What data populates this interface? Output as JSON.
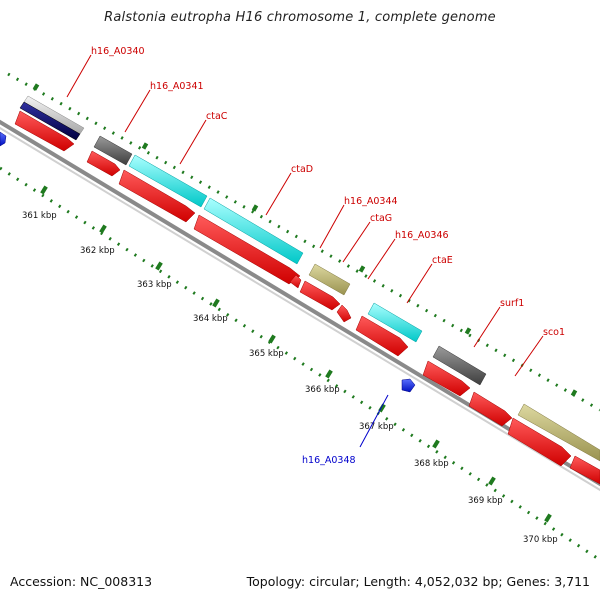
{
  "title": "Ralstonia eutropha H16 chromosome 1, complete genome",
  "footer": {
    "accession": "Accession: NC_008313",
    "topology": "Topology: circular; Length: 4,052,032 bp; Genes: 3,711"
  },
  "colors": {
    "backbone": "#8a8a8a",
    "tick": "#1f7a1f",
    "gene_arrow": "#ff0000",
    "label_red": "#cc0000",
    "label_blue": "#0000cc",
    "feature_cyan": "#19e3e3",
    "feature_gray": "#606060",
    "feature_khaki": "#b8b070",
    "feature_navy": "#101070",
    "feature_blue": "#1a33ff"
  },
  "ticks": [
    "361 kbp",
    "362 kbp",
    "363 kbp",
    "364 kbp",
    "365 kbp",
    "366 kbp",
    "367 kbp",
    "368 kbp",
    "369 kbp",
    "370 kbp"
  ],
  "genes": [
    {
      "name": "h16_A0340",
      "color": "label_red"
    },
    {
      "name": "h16_A0341",
      "color": "label_red"
    },
    {
      "name": "ctaC",
      "color": "label_red"
    },
    {
      "name": "ctaD",
      "color": "label_red"
    },
    {
      "name": "h16_A0344",
      "color": "label_red"
    },
    {
      "name": "ctaG",
      "color": "label_red"
    },
    {
      "name": "h16_A0346",
      "color": "label_red"
    },
    {
      "name": "ctaE",
      "color": "label_red"
    },
    {
      "name": "surf1",
      "color": "label_red"
    },
    {
      "name": "sco1",
      "color": "label_red"
    },
    {
      "name": "h16_A0348",
      "color": "label_blue"
    }
  ]
}
